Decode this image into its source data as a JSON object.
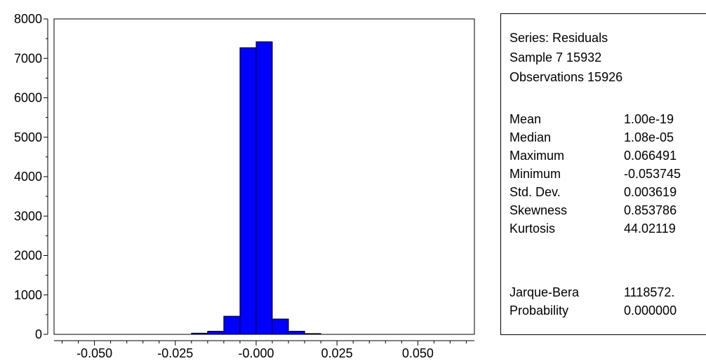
{
  "chart_data": {
    "type": "bar",
    "title": "",
    "xlabel": "",
    "ylabel": "",
    "xlim": [
      -0.0625,
      0.0675
    ],
    "ylim": [
      0,
      8000
    ],
    "grid": false,
    "bar_color": "#0000ff",
    "bins": [
      {
        "x0": -0.02,
        "x1": -0.015,
        "count": 30
      },
      {
        "x0": -0.015,
        "x1": -0.01,
        "count": 80
      },
      {
        "x0": -0.01,
        "x1": -0.005,
        "count": 460
      },
      {
        "x0": -0.005,
        "x1": 0.0,
        "count": 7270
      },
      {
        "x0": 0.0,
        "x1": 0.005,
        "count": 7420
      },
      {
        "x0": 0.005,
        "x1": 0.01,
        "count": 390
      },
      {
        "x0": 0.01,
        "x1": 0.015,
        "count": 80
      },
      {
        "x0": 0.015,
        "x1": 0.02,
        "count": 20
      }
    ],
    "y_ticks": [
      0,
      1000,
      2000,
      3000,
      4000,
      5000,
      6000,
      7000,
      8000
    ],
    "y_tick_labels": [
      "0",
      "1000",
      "2000",
      "3000",
      "4000",
      "5000",
      "6000",
      "7000",
      "8000"
    ],
    "x_ticks": [
      -0.05,
      -0.025,
      0.0,
      0.025,
      0.05
    ],
    "x_tick_labels": [
      "-0.050",
      "-0.025",
      "-0.000",
      "0.025",
      "0.050"
    ]
  },
  "stats": {
    "series": "Series: Residuals",
    "sample": "Sample 7 15932",
    "observations": "Observations 15926",
    "rows": [
      {
        "label": "Mean",
        "value": "1.00e-19"
      },
      {
        "label": "Median",
        "value": "1.08e-05"
      },
      {
        "label": "Maximum",
        "value": "0.066491"
      },
      {
        "label": "Minimum",
        "value": "-0.053745"
      },
      {
        "label": "Std. Dev.",
        "value": "0.003619"
      },
      {
        "label": "Skewness",
        "value": "0.853786"
      },
      {
        "label": "Kurtosis",
        "value": "44.02119"
      }
    ],
    "test_rows": [
      {
        "label": "Jarque-Bera",
        "value": "1118572."
      },
      {
        "label": "Probability",
        "value": "0.000000"
      }
    ]
  }
}
